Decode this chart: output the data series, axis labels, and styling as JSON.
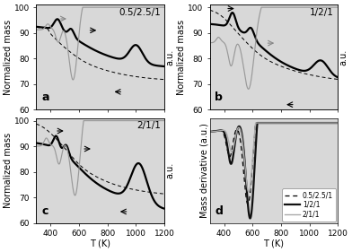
{
  "xlim": [
    300,
    1200
  ],
  "ylim_mass": [
    60,
    101
  ],
  "yticks_mass": [
    60,
    70,
    80,
    90,
    100
  ],
  "xlabel": "T (K)",
  "ylabel_left": "Normalized mass",
  "ylabel_right": "a.u.",
  "ylabel_d": "Mass derivative (a.u.)",
  "legend_labels": [
    "0.5/2.5/1",
    "1/2/1",
    "2/1/1"
  ],
  "bg_color": "#d8d8d8",
  "panel_label_fontsize": 9,
  "title_fontsize": 7.5,
  "tick_fontsize": 6.5,
  "axis_label_fontsize": 7
}
